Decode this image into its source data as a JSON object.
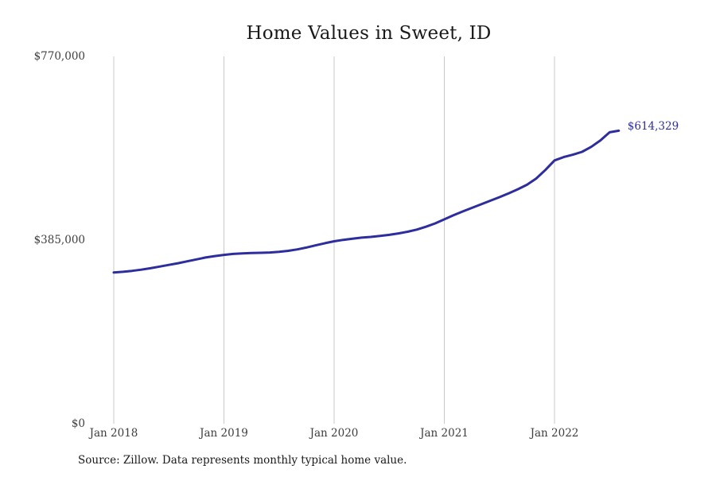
{
  "page": {
    "source_note": "Source: Zillow. Data represents monthly typical home value."
  },
  "chart_data": {
    "type": "line",
    "title": "Home Values in Sweet, ID",
    "xlabel": "",
    "ylabel": "",
    "legend": "none",
    "grid": "vertical-only",
    "line_color": "#2d2d9e",
    "grid_color": "#c9c9c9",
    "end_label": "$614,329",
    "last_value": 614329,
    "ylim": [
      0,
      770000
    ],
    "y_ticks": [
      {
        "label": "$770,000",
        "value": 770000
      },
      {
        "label": "$385,000",
        "value": 385000
      },
      {
        "label": "$0",
        "value": 0
      }
    ],
    "x_ticks": [
      "Jan 2018",
      "Jan 2019",
      "Jan 2020",
      "Jan 2021",
      "Jan 2022"
    ],
    "x": [
      "Jan 2018",
      "Feb 2018",
      "Mar 2018",
      "Apr 2018",
      "May 2018",
      "Jun 2018",
      "Jul 2018",
      "Aug 2018",
      "Sep 2018",
      "Oct 2018",
      "Nov 2018",
      "Dec 2018",
      "Jan 2019",
      "Feb 2019",
      "Mar 2019",
      "Apr 2019",
      "May 2019",
      "Jun 2019",
      "Jul 2019",
      "Aug 2019",
      "Sep 2019",
      "Oct 2019",
      "Nov 2019",
      "Dec 2019",
      "Jan 2020",
      "Feb 2020",
      "Mar 2020",
      "Apr 2020",
      "May 2020",
      "Jun 2020",
      "Jul 2020",
      "Aug 2020",
      "Sep 2020",
      "Oct 2020",
      "Nov 2020",
      "Dec 2020",
      "Jan 2021",
      "Feb 2021",
      "Mar 2021",
      "Apr 2021",
      "May 2021",
      "Jun 2021",
      "Jul 2021",
      "Aug 2021",
      "Sep 2021",
      "Oct 2021",
      "Nov 2021",
      "Dec 2021",
      "Jan 2022",
      "Feb 2022",
      "Mar 2022",
      "Apr 2022",
      "May 2022",
      "Jun 2022",
      "Jul 2022",
      "Aug 2022"
    ],
    "values": [
      317000,
      318500,
      320500,
      323000,
      326000,
      329500,
      333000,
      336500,
      340500,
      344500,
      348500,
      351500,
      354000,
      356000,
      357000,
      357800,
      358300,
      359000,
      360500,
      362500,
      365500,
      369500,
      374000,
      378500,
      382500,
      385500,
      388000,
      390200,
      391700,
      393700,
      396000,
      399000,
      402500,
      407000,
      413000,
      420000,
      428500,
      437000,
      445000,
      452500,
      460000,
      467500,
      475000,
      483000,
      491500,
      501000,
      514000,
      532000,
      552000,
      559000,
      564000,
      570000,
      580500,
      594000,
      611000,
      614329
    ]
  }
}
